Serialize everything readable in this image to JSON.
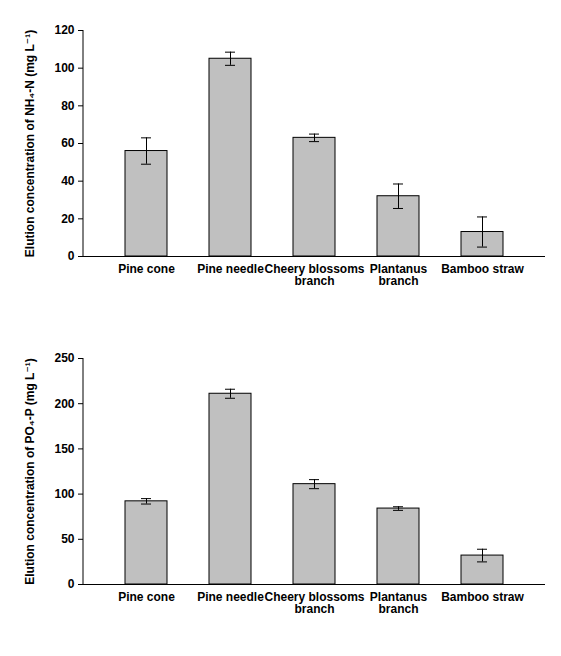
{
  "chart_data": [
    {
      "type": "bar",
      "y_label": "Elution concentration of NH₄-N (mg L⁻¹)",
      "categories": [
        "Pine cone",
        "Pine needle",
        "Cheery blossoms branch",
        "Plantanus branch",
        "Bamboo straw"
      ],
      "values": [
        56,
        105,
        63,
        32,
        13
      ],
      "errors": [
        7,
        3.5,
        2,
        6.5,
        8
      ],
      "color": "#c0c0c0",
      "ylim": [
        0,
        120
      ],
      "yticks": [
        0,
        20,
        40,
        60,
        80,
        100,
        120
      ],
      "grid": false
    },
    {
      "type": "bar",
      "y_label": "Elution concentration of PO₄-P (mg L⁻¹)",
      "categories": [
        "Pine cone",
        "Pine needle",
        "Cheery blossoms branch",
        "Plantanus branch",
        "Bamboo straw"
      ],
      "values": [
        92,
        211,
        111,
        84,
        32
      ],
      "errors": [
        3,
        5,
        5,
        2,
        7
      ],
      "color": "#c0c0c0",
      "ylim": [
        0,
        250
      ],
      "yticks": [
        0,
        50,
        100,
        150,
        200,
        250
      ],
      "grid": false
    }
  ]
}
